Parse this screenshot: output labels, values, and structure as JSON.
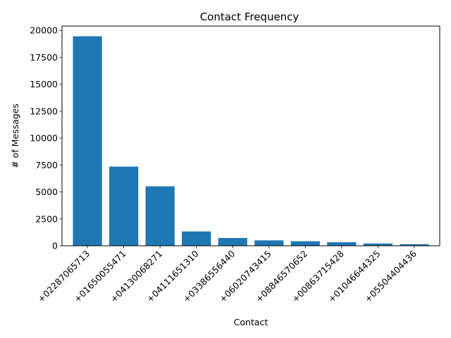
{
  "chart_data": {
    "type": "bar",
    "title": "Contact Frequency",
    "xlabel": "Contact",
    "ylabel": "# of Messages",
    "categories": [
      "+02287065713",
      "+01650055471",
      "+04130068271",
      "+04111651310",
      "+03386556440",
      "+06020743415",
      "+08846570652",
      "+00863715428",
      "+01046644325",
      "+05504404436"
    ],
    "values": [
      19450,
      7350,
      5520,
      1330,
      720,
      500,
      420,
      330,
      210,
      150
    ],
    "ylim": [
      0,
      20400
    ],
    "yticks": [
      0,
      2500,
      5000,
      7500,
      10000,
      12500,
      15000,
      17500,
      20000
    ],
    "ytick_labels": [
      "0",
      "2500",
      "5000",
      "7500",
      "10000",
      "12500",
      "15000",
      "17500",
      "20000"
    ],
    "bar_color": "#1f77b4",
    "grid": false,
    "legend": "none"
  }
}
